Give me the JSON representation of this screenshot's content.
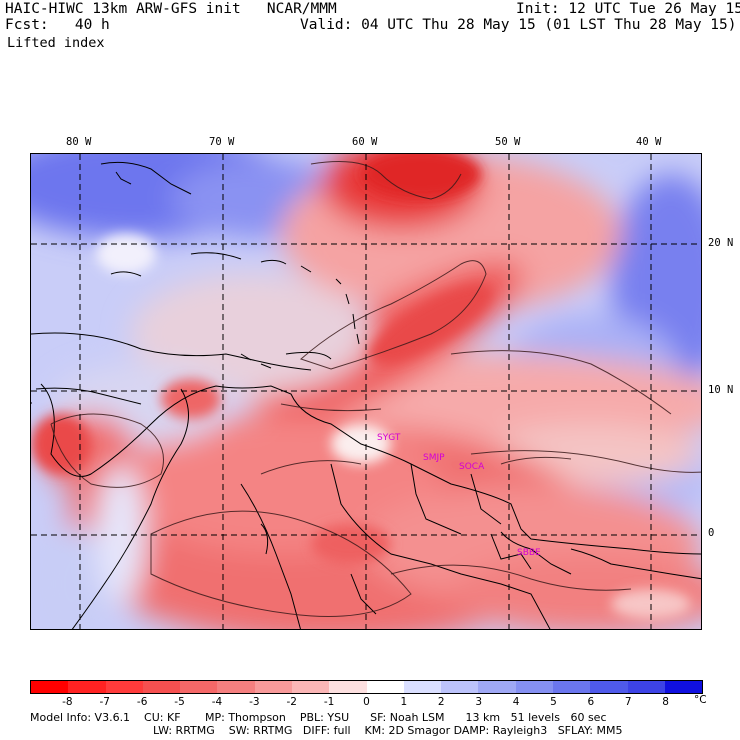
{
  "header": {
    "title": "HAIC-HIWC 13km ARW-GFS init   NCAR/MMM",
    "init": "Init: 12 UTC Tue 26 May 15",
    "fcst": "Fcst:   40 h",
    "valid": "Valid: 04 UTC Thu 28 May 15 (01 LST Thu 28 May 15)",
    "field": "Lifted index"
  },
  "map": {
    "lon_labels": [
      "80 W",
      "70 W",
      "60 W",
      "50 W",
      "40 W"
    ],
    "lat_labels": [
      "20 N",
      "10 N",
      "0"
    ],
    "stations": [
      "SYGT",
      "SMJP",
      "SOCA",
      "SBBE"
    ]
  },
  "colorbar": {
    "ticks": [
      "-8",
      "-7",
      "-6",
      "-5",
      "-4",
      "-3",
      "-2",
      "-1",
      "0",
      "1",
      "2",
      "3",
      "4",
      "5",
      "6",
      "7",
      "8"
    ],
    "unit": "°C",
    "colors": [
      "#ff0000",
      "#ff2222",
      "#ff3b3b",
      "#f65050",
      "#f56868",
      "#f57f7f",
      "#f89a9a",
      "#fbb6b6",
      "#fde0e0",
      "#ffffff",
      "#dadfff",
      "#bcc3fb",
      "#9fa8f5",
      "#8590f2",
      "#6b76ee",
      "#4f5aea",
      "#3d43e6",
      "#1010e0"
    ]
  },
  "model_info": {
    "line1": "Model Info: V3.6.1    CU: KF       MP: Thompson    PBL: YSU      SF: Noah LSM      13 km   51 levels   60 sec",
    "line2": "LW: RRTMG    SW: RRTMG   DIFF: full    KM: 2D Smagor DAMP: Rayleigh3   SFLAY: MM5"
  },
  "colors": {
    "positive": "#5a64e8",
    "negative": "#f04040",
    "neutral": "#ffffff"
  }
}
